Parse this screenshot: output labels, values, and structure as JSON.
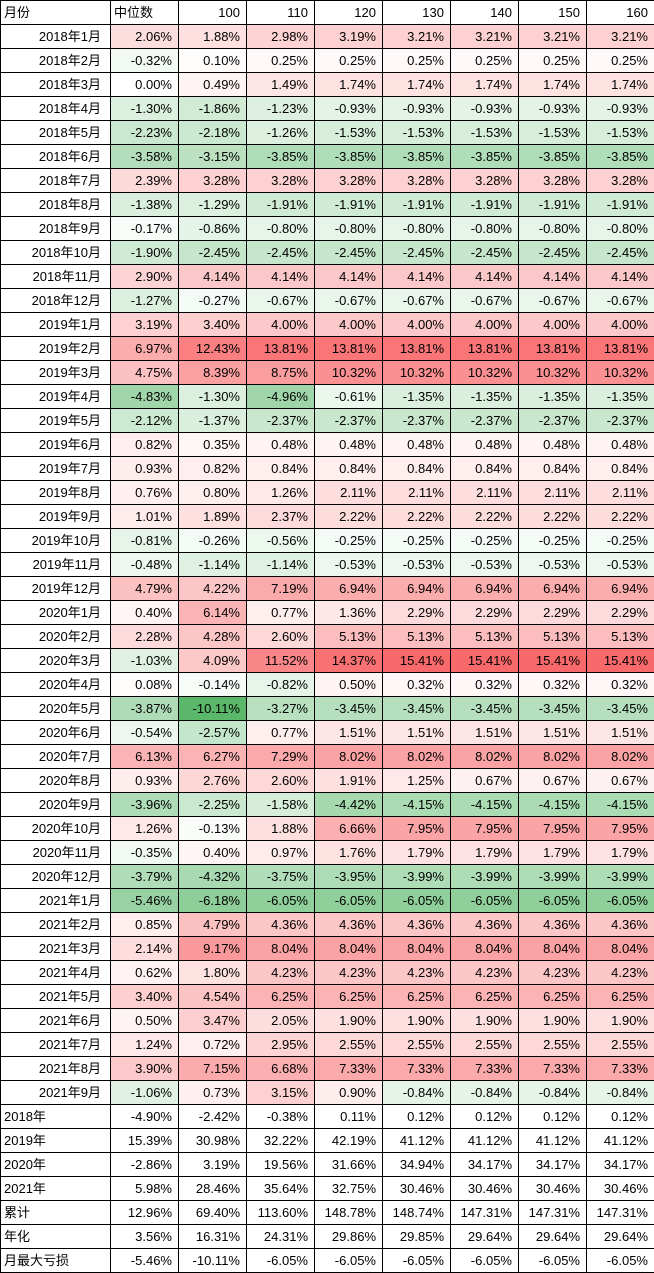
{
  "chart_data": {
    "type": "heatmap",
    "title": "",
    "value_format": "percent_2dp",
    "headers": [
      "月份",
      "中位数",
      "100",
      "110",
      "120",
      "130",
      "140",
      "150",
      "160"
    ],
    "row_label_header": "月份",
    "colorscale": {
      "positive_max_color": "#f8696b",
      "negative_max_color": "#5bb86b",
      "neutral_color": "#ffffff",
      "positive_max_value": 15.41,
      "negative_max_value": -10.11,
      "gamma": 0.75,
      "note": "red = positive, green = negative, white = zero; summary rows uncolored"
    },
    "monthly_rows": [
      {
        "label": "2018年1月",
        "values": [
          2.06,
          1.88,
          2.98,
          3.19,
          3.21,
          3.21,
          3.21,
          3.21
        ]
      },
      {
        "label": "2018年2月",
        "values": [
          -0.32,
          0.1,
          0.25,
          0.25,
          0.25,
          0.25,
          0.25,
          0.25
        ]
      },
      {
        "label": "2018年3月",
        "values": [
          0.0,
          0.49,
          1.49,
          1.74,
          1.74,
          1.74,
          1.74,
          1.74
        ]
      },
      {
        "label": "2018年4月",
        "values": [
          -1.3,
          -1.86,
          -1.23,
          -0.93,
          -0.93,
          -0.93,
          -0.93,
          -0.93
        ]
      },
      {
        "label": "2018年5月",
        "values": [
          -2.23,
          -2.18,
          -1.26,
          -1.53,
          -1.53,
          -1.53,
          -1.53,
          -1.53
        ]
      },
      {
        "label": "2018年6月",
        "values": [
          -3.58,
          -3.15,
          -3.85,
          -3.85,
          -3.85,
          -3.85,
          -3.85,
          -3.85
        ]
      },
      {
        "label": "2018年7月",
        "values": [
          2.39,
          3.28,
          3.28,
          3.28,
          3.28,
          3.28,
          3.28,
          3.28
        ]
      },
      {
        "label": "2018年8月",
        "values": [
          -1.38,
          -1.29,
          -1.91,
          -1.91,
          -1.91,
          -1.91,
          -1.91,
          -1.91
        ]
      },
      {
        "label": "2018年9月",
        "values": [
          -0.17,
          -0.86,
          -0.8,
          -0.8,
          -0.8,
          -0.8,
          -0.8,
          -0.8
        ]
      },
      {
        "label": "2018年10月",
        "values": [
          -1.9,
          -2.45,
          -2.45,
          -2.45,
          -2.45,
          -2.45,
          -2.45,
          -2.45
        ]
      },
      {
        "label": "2018年11月",
        "values": [
          2.9,
          4.14,
          4.14,
          4.14,
          4.14,
          4.14,
          4.14,
          4.14
        ]
      },
      {
        "label": "2018年12月",
        "values": [
          -1.27,
          -0.27,
          -0.67,
          -0.67,
          -0.67,
          -0.67,
          -0.67,
          -0.67
        ]
      },
      {
        "label": "2019年1月",
        "values": [
          3.19,
          3.4,
          4.0,
          4.0,
          4.0,
          4.0,
          4.0,
          4.0
        ]
      },
      {
        "label": "2019年2月",
        "values": [
          6.97,
          12.43,
          13.81,
          13.81,
          13.81,
          13.81,
          13.81,
          13.81
        ]
      },
      {
        "label": "2019年3月",
        "values": [
          4.75,
          8.39,
          8.75,
          10.32,
          10.32,
          10.32,
          10.32,
          10.32
        ]
      },
      {
        "label": "2019年4月",
        "values": [
          -4.83,
          -1.3,
          -4.96,
          -0.61,
          -1.35,
          -1.35,
          -1.35,
          -1.35
        ]
      },
      {
        "label": "2019年5月",
        "values": [
          -2.12,
          -1.37,
          -2.37,
          -2.37,
          -2.37,
          -2.37,
          -2.37,
          -2.37
        ]
      },
      {
        "label": "2019年6月",
        "values": [
          0.82,
          0.35,
          0.48,
          0.48,
          0.48,
          0.48,
          0.48,
          0.48
        ]
      },
      {
        "label": "2019年7月",
        "values": [
          0.93,
          0.82,
          0.84,
          0.84,
          0.84,
          0.84,
          0.84,
          0.84
        ]
      },
      {
        "label": "2019年8月",
        "values": [
          0.76,
          0.8,
          1.26,
          2.11,
          2.11,
          2.11,
          2.11,
          2.11
        ]
      },
      {
        "label": "2019年9月",
        "values": [
          1.01,
          1.89,
          2.37,
          2.22,
          2.22,
          2.22,
          2.22,
          2.22
        ]
      },
      {
        "label": "2019年10月",
        "values": [
          -0.81,
          -0.26,
          -0.56,
          -0.25,
          -0.25,
          -0.25,
          -0.25,
          -0.25
        ]
      },
      {
        "label": "2019年11月",
        "values": [
          -0.48,
          -1.14,
          -1.14,
          -0.53,
          -0.53,
          -0.53,
          -0.53,
          -0.53
        ]
      },
      {
        "label": "2019年12月",
        "values": [
          4.79,
          4.22,
          7.19,
          6.94,
          6.94,
          6.94,
          6.94,
          6.94
        ]
      },
      {
        "label": "2020年1月",
        "values": [
          0.4,
          6.14,
          0.77,
          1.36,
          2.29,
          2.29,
          2.29,
          2.29
        ]
      },
      {
        "label": "2020年2月",
        "values": [
          2.28,
          4.28,
          2.6,
          5.13,
          5.13,
          5.13,
          5.13,
          5.13
        ]
      },
      {
        "label": "2020年3月",
        "values": [
          -1.03,
          4.09,
          11.52,
          14.37,
          15.41,
          15.41,
          15.41,
          15.41
        ]
      },
      {
        "label": "2020年4月",
        "values": [
          0.08,
          -0.14,
          -0.82,
          0.5,
          0.32,
          0.32,
          0.32,
          0.32
        ]
      },
      {
        "label": "2020年5月",
        "values": [
          -3.87,
          -10.11,
          -3.27,
          -3.45,
          -3.45,
          -3.45,
          -3.45,
          -3.45
        ]
      },
      {
        "label": "2020年6月",
        "values": [
          -0.54,
          -2.57,
          0.77,
          1.51,
          1.51,
          1.51,
          1.51,
          1.51
        ]
      },
      {
        "label": "2020年7月",
        "values": [
          6.13,
          6.27,
          7.29,
          8.02,
          8.02,
          8.02,
          8.02,
          8.02
        ]
      },
      {
        "label": "2020年8月",
        "values": [
          0.93,
          2.76,
          2.6,
          1.91,
          1.25,
          0.67,
          0.67,
          0.67
        ]
      },
      {
        "label": "2020年9月",
        "values": [
          -3.96,
          -2.25,
          -1.58,
          -4.42,
          -4.15,
          -4.15,
          -4.15,
          -4.15
        ]
      },
      {
        "label": "2020年10月",
        "values": [
          1.26,
          -0.13,
          1.88,
          6.66,
          7.95,
          7.95,
          7.95,
          7.95
        ]
      },
      {
        "label": "2020年11月",
        "values": [
          -0.35,
          0.4,
          0.97,
          1.76,
          1.79,
          1.79,
          1.79,
          1.79
        ]
      },
      {
        "label": "2020年12月",
        "values": [
          -3.79,
          -4.32,
          -3.75,
          -3.95,
          -3.99,
          -3.99,
          -3.99,
          -3.99
        ]
      },
      {
        "label": "2021年1月",
        "values": [
          -5.46,
          -6.18,
          -6.05,
          -6.05,
          -6.05,
          -6.05,
          -6.05,
          -6.05
        ]
      },
      {
        "label": "2021年2月",
        "values": [
          0.85,
          4.79,
          4.36,
          4.36,
          4.36,
          4.36,
          4.36,
          4.36
        ]
      },
      {
        "label": "2021年3月",
        "values": [
          2.14,
          9.17,
          8.04,
          8.04,
          8.04,
          8.04,
          8.04,
          8.04
        ]
      },
      {
        "label": "2021年4月",
        "values": [
          0.62,
          1.8,
          4.23,
          4.23,
          4.23,
          4.23,
          4.23,
          4.23
        ]
      },
      {
        "label": "2021年5月",
        "values": [
          3.4,
          4.54,
          6.25,
          6.25,
          6.25,
          6.25,
          6.25,
          6.25
        ]
      },
      {
        "label": "2021年6月",
        "values": [
          0.5,
          3.47,
          2.05,
          1.9,
          1.9,
          1.9,
          1.9,
          1.9
        ]
      },
      {
        "label": "2021年7月",
        "values": [
          1.24,
          0.72,
          2.95,
          2.55,
          2.55,
          2.55,
          2.55,
          2.55
        ]
      },
      {
        "label": "2021年8月",
        "values": [
          3.9,
          7.15,
          6.68,
          7.33,
          7.33,
          7.33,
          7.33,
          7.33
        ]
      },
      {
        "label": "2021年9月",
        "values": [
          -1.06,
          0.73,
          3.15,
          0.9,
          -0.84,
          -0.84,
          -0.84,
          -0.84
        ]
      }
    ],
    "summary_rows": [
      {
        "label": "2018年",
        "values": [
          -4.9,
          -2.42,
          -0.38,
          0.11,
          0.12,
          0.12,
          0.12,
          0.12
        ]
      },
      {
        "label": "2019年",
        "values": [
          15.39,
          30.98,
          32.22,
          42.19,
          41.12,
          41.12,
          41.12,
          41.12
        ]
      },
      {
        "label": "2020年",
        "values": [
          -2.86,
          3.19,
          19.56,
          31.66,
          34.94,
          34.17,
          34.17,
          34.17
        ]
      },
      {
        "label": "2021年",
        "values": [
          5.98,
          28.46,
          35.64,
          32.75,
          30.46,
          30.46,
          30.46,
          30.46
        ]
      },
      {
        "label": "累计",
        "values": [
          12.96,
          69.4,
          113.6,
          148.78,
          148.74,
          147.31,
          147.31,
          147.31
        ]
      },
      {
        "label": "年化",
        "values": [
          3.56,
          16.31,
          24.31,
          29.86,
          29.85,
          29.64,
          29.64,
          29.64
        ]
      },
      {
        "label": "月最大亏损",
        "values": [
          -5.46,
          -10.11,
          -6.05,
          -6.05,
          -6.05,
          -6.05,
          -6.05,
          -6.05
        ]
      }
    ]
  }
}
